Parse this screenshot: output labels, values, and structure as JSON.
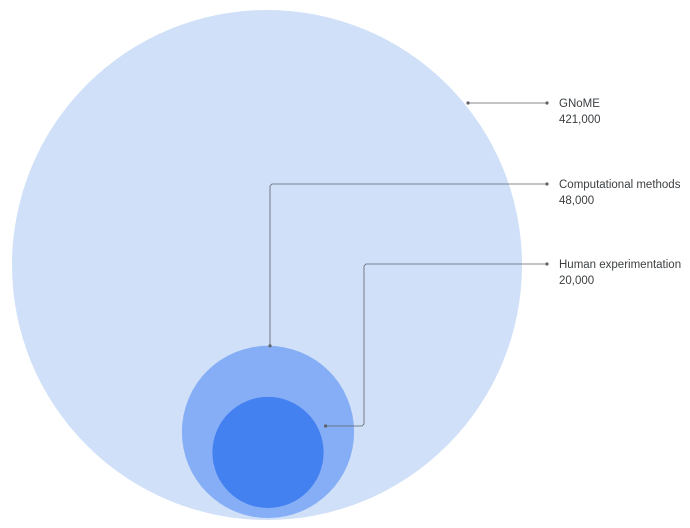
{
  "chart_data": {
    "type": "nested-bubble",
    "series": [
      {
        "name": "GNoME",
        "value": 421000,
        "value_label": "421,000",
        "color": "#cfe0f8"
      },
      {
        "name": "Computational methods",
        "value": 48000,
        "value_label": "48,000",
        "color": "#85aef6"
      },
      {
        "name": "Human experimentation",
        "value": 20000,
        "value_label": "20,000",
        "color": "#4380f0"
      }
    ],
    "legend": "right"
  }
}
